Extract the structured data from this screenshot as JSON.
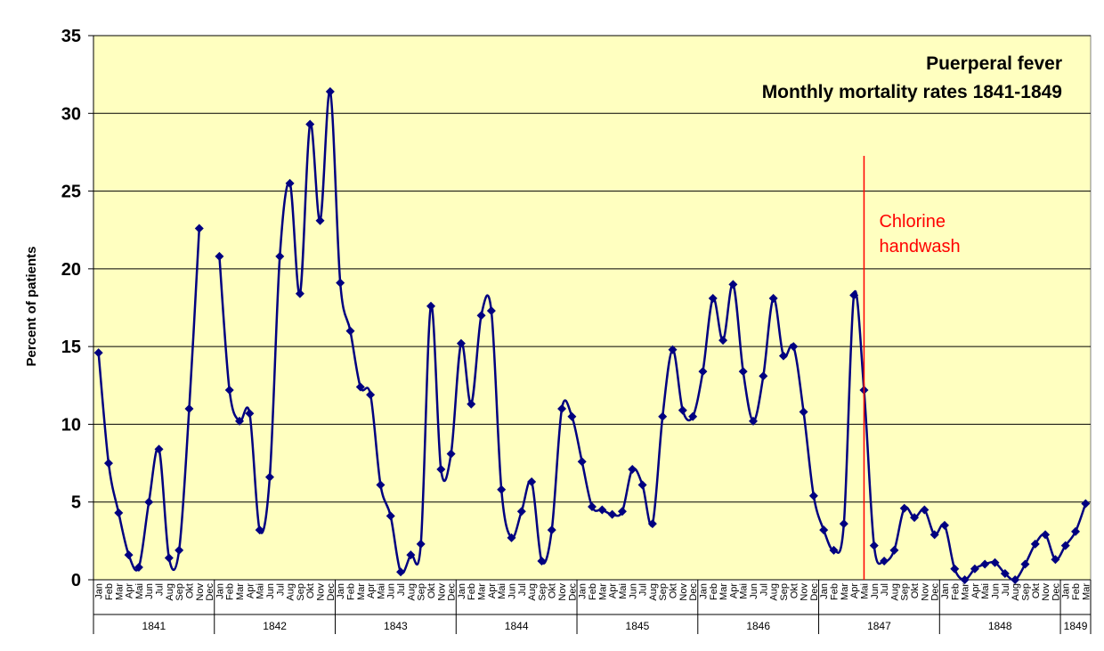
{
  "chart_data": {
    "type": "line",
    "title": "Puerperal fever",
    "subtitle": "Monthly mortality rates 1841-1849",
    "ylabel": "Percent of patients",
    "xlabel": "",
    "ylim": [
      0,
      35
    ],
    "yticks": [
      0,
      5,
      10,
      15,
      20,
      25,
      30,
      35
    ],
    "grid": true,
    "legend": "none",
    "colors": {
      "plot_bg": "#ffffc0",
      "line": "#000080",
      "annotation": "#ff0000",
      "grid": "#000000"
    },
    "marker": "diamond",
    "annotation": {
      "lines": [
        "Chlorine",
        "handwash"
      ],
      "month_index": 76.5
    },
    "years": [
      {
        "label": "1841",
        "months": [
          "Jan",
          "Feb",
          "Mar",
          "Apr",
          "Mai",
          "Jun",
          "Jul",
          "Aug",
          "Sep",
          "Okt",
          "Nov",
          "Dec"
        ]
      },
      {
        "label": "1842",
        "months": [
          "Jan",
          "Feb",
          "Mar",
          "Apr",
          "Mai",
          "Jun",
          "Jul",
          "Aug",
          "Sep",
          "Okt",
          "Nov",
          "Dec"
        ]
      },
      {
        "label": "1843",
        "months": [
          "Jan",
          "Feb",
          "Mar",
          "Apr",
          "Mai",
          "Jun",
          "Jul",
          "Aug",
          "Sep",
          "Okt",
          "Nov",
          "Dec"
        ]
      },
      {
        "label": "1844",
        "months": [
          "Jan",
          "Feb",
          "Mar",
          "Apr",
          "Mai",
          "Jun",
          "Jul",
          "Aug",
          "Sep",
          "Okt",
          "Nov",
          "Dec"
        ]
      },
      {
        "label": "1845",
        "months": [
          "Jan",
          "Feb",
          "Mar",
          "Apr",
          "Mai",
          "Jun",
          "Jul",
          "Aug",
          "Sep",
          "Okt",
          "Nov",
          "Dec"
        ]
      },
      {
        "label": "1846",
        "months": [
          "Jan",
          "Feb",
          "Mar",
          "Apr",
          "Mai",
          "Jun",
          "Jul",
          "Aug",
          "Sep",
          "Okt",
          "Nov",
          "Dec"
        ]
      },
      {
        "label": "1847",
        "months": [
          "Jan",
          "Feb",
          "Mar",
          "Apr",
          "Mai",
          "Jun",
          "Jul",
          "Aug",
          "Sep",
          "Okt",
          "Nov",
          "Dec"
        ]
      },
      {
        "label": "1848",
        "months": [
          "Jan",
          "Feb",
          "Mar",
          "Apr",
          "Mai",
          "Jun",
          "Jul",
          "Aug",
          "Sep",
          "Okt",
          "Nov",
          "Dec"
        ]
      },
      {
        "label": "1849",
        "months": [
          "Jan",
          "Feb",
          "Mar"
        ]
      }
    ],
    "segments": [
      [
        14.6,
        7.5,
        4.3,
        1.6,
        0.8,
        5.0,
        8.4,
        1.4,
        1.9,
        11.0,
        22.6
      ],
      [
        20.8,
        12.2,
        10.2,
        10.7,
        3.2,
        6.6,
        20.8,
        25.5,
        18.4,
        29.3,
        23.1,
        31.4,
        19.1,
        16.0,
        12.4,
        11.9,
        6.1,
        4.1,
        0.5,
        1.6,
        2.3,
        17.6,
        7.1,
        8.1,
        15.2,
        11.3,
        17.0,
        17.3,
        5.8,
        2.7,
        4.4,
        6.3,
        1.2,
        3.2,
        11.0,
        10.5,
        7.6,
        4.7,
        4.5,
        4.2,
        4.4,
        7.1,
        6.1,
        3.6,
        10.5,
        14.8,
        10.9,
        10.5,
        13.4,
        18.1,
        15.4,
        19.0,
        13.4,
        10.2,
        13.1,
        18.1,
        14.4,
        15.0,
        10.8,
        5.4,
        3.2,
        1.9,
        3.6,
        18.3,
        12.2,
        2.2,
        1.2,
        1.9,
        4.6,
        4.0,
        4.5,
        2.9,
        3.5,
        0.7,
        0.0,
        0.7,
        1.0,
        1.1,
        0.4,
        0.0,
        1.0,
        2.3,
        2.9,
        1.3,
        2.2,
        3.1,
        4.9
      ]
    ],
    "segment_start_index": [
      0,
      12
    ]
  }
}
